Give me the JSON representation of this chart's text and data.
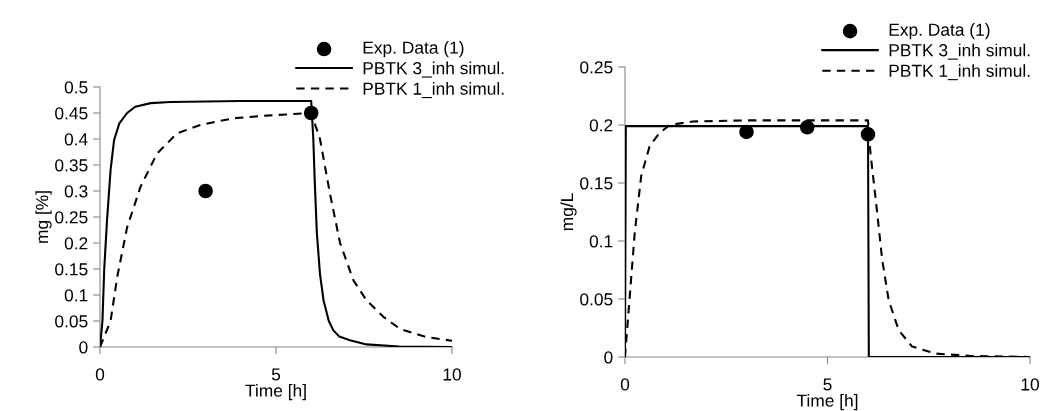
{
  "chart_data": [
    {
      "type": "line",
      "xlabel": "Time [h]",
      "ylabel": "mg [%]",
      "xlim": [
        0,
        10
      ],
      "xticks": [
        0,
        5,
        10
      ],
      "ylim": [
        0,
        0.5
      ],
      "yticks": [
        0,
        0.05,
        0.1,
        0.15,
        0.2,
        0.25,
        0.3,
        0.35,
        0.4,
        0.45,
        0.5
      ],
      "grid": false,
      "legend": "top right",
      "series": [
        {
          "name": "Exp. Data (1)",
          "type": "scatter",
          "marker": "circle",
          "color": "#000000",
          "x": [
            3,
            6
          ],
          "values": [
            0.3,
            0.45
          ]
        },
        {
          "name": "PBTK 3_inh simul.",
          "type": "line",
          "line_style": "solid",
          "color": "#000000",
          "x": [
            0,
            0.07,
            0.12,
            0.2,
            0.3,
            0.4,
            0.55,
            0.77,
            1.0,
            1.44,
            2,
            4,
            6.0,
            6.06,
            6.1,
            6.16,
            6.25,
            6.35,
            6.5,
            6.63,
            6.8,
            7.1,
            7.57,
            8.5,
            10
          ],
          "values": [
            0,
            0.05,
            0.15,
            0.244,
            0.34,
            0.398,
            0.43,
            0.45,
            0.462,
            0.469,
            0.471,
            0.473,
            0.473,
            0.4,
            0.32,
            0.22,
            0.14,
            0.09,
            0.05,
            0.032,
            0.02,
            0.013,
            0.005,
            0.001,
            0
          ]
        },
        {
          "name": "PBTK 1_inh simul.",
          "type": "line",
          "line_style": "dashed",
          "color": "#000000",
          "x": [
            0,
            0.3,
            0.49,
            0.77,
            1.15,
            1.62,
            2.19,
            2.85,
            3.8,
            4.74,
            6.0,
            6.25,
            6.53,
            6.82,
            7.2,
            7.57,
            8.05,
            8.52,
            9.27,
            10
          ],
          "values": [
            0,
            0.05,
            0.135,
            0.23,
            0.308,
            0.372,
            0.411,
            0.427,
            0.44,
            0.445,
            0.45,
            0.4,
            0.296,
            0.2,
            0.128,
            0.09,
            0.058,
            0.035,
            0.019,
            0.012
          ]
        }
      ]
    },
    {
      "type": "line",
      "xlabel": "Time [h]",
      "ylabel": "mg/L",
      "xlim": [
        0,
        10
      ],
      "xticks": [
        0,
        5,
        10
      ],
      "ylim": [
        0,
        0.25
      ],
      "yticks": [
        0,
        0.05,
        0.1,
        0.15,
        0.2,
        0.25
      ],
      "grid": false,
      "legend": "top right",
      "series": [
        {
          "name": "Exp. Data (1)",
          "type": "scatter",
          "marker": "circle",
          "color": "#000000",
          "x": [
            3,
            4.5,
            6
          ],
          "values": [
            0.194,
            0.198,
            0.192
          ]
        },
        {
          "name": "PBTK 3_inh simul.",
          "type": "line",
          "line_style": "solid",
          "color": "#000000",
          "x": [
            0,
            0.02,
            6.0,
            6.02,
            10
          ],
          "values": [
            0,
            0.199,
            0.199,
            0,
            0
          ]
        },
        {
          "name": "PBTK 1_inh simul.",
          "type": "line",
          "line_style": "dashed",
          "color": "#000000",
          "x": [
            0,
            0.11,
            0.24,
            0.4,
            0.61,
            0.85,
            1.1,
            1.67,
            3,
            6.0,
            6.06,
            6.19,
            6.35,
            6.51,
            6.76,
            7.09,
            7.66,
            8.5,
            10
          ],
          "values": [
            0,
            0.049,
            0.107,
            0.156,
            0.182,
            0.193,
            0.2,
            0.203,
            0.204,
            0.204,
            0.176,
            0.136,
            0.084,
            0.049,
            0.023,
            0.009,
            0.003,
            0.001,
            0
          ]
        }
      ]
    }
  ]
}
